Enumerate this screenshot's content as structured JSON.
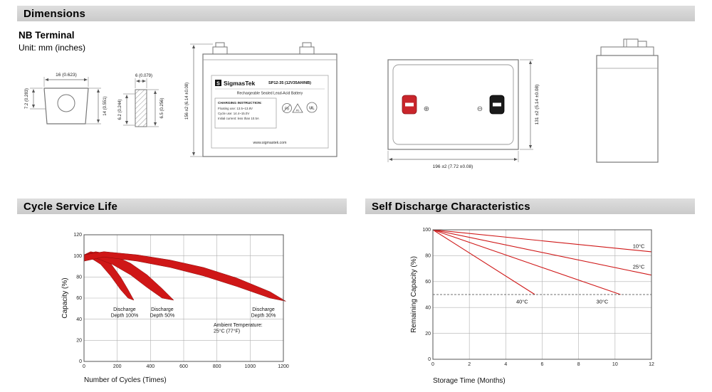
{
  "sections": {
    "dimensions_title": "Dimensions",
    "cycle_title": "Cycle Service Life",
    "self_discharge_title": "Self Discharge Characteristics"
  },
  "terminal_info": {
    "heading": "NB Terminal",
    "unit_note": "Unit: mm (inches)"
  },
  "drawings": {
    "terminal_front": {
      "width": "16 (0.623)",
      "height_partial": "7.2 (0.283)",
      "height_full": "14 (0.551)"
    },
    "terminal_section": {
      "width": "6 (0.079)",
      "depth_inner": "6.2 (0.244)",
      "depth_outer": "6.5 (0.256)"
    },
    "battery_front": {
      "logo_letter": "S",
      "brand": "SigmasTek",
      "model": "SP12-35 (12V35AH/NB)",
      "type_line": "Rechargeable Sealed Lead-Acid Battery",
      "charging_title": "CHARGING INSTRUCTION:",
      "charging_line1": "Floating use: 13.5~13.8V",
      "charging_line2": "Cycle use: 14.4~15.0V",
      "charging_line3": "Initial current: less than 10.5A",
      "pb_icon_label": "Pb",
      "recycle_icon_label": "Pb",
      "ul_icon_label": "UL",
      "website": "www.sigmastek.com",
      "height_dim": "156 ±2 (6.14 ±0.08)"
    },
    "battery_top": {
      "width_dim": "196 ±2 (7.72 ±0.08)",
      "depth_dim": "131 ±2 (5.14 ±0.08)",
      "positive_symbol": "⊕",
      "negative_symbol": "⊖"
    }
  },
  "colors": {
    "accent_red": "#cf1717",
    "terminal_red": "#c9252b",
    "terminal_black": "#1a1a1a",
    "header_gray": "#d4d4d4"
  },
  "chart_data": [
    {
      "id": "cycle-service-life",
      "type": "area",
      "title": "Cycle Service Life",
      "xlabel": "Number of Cycles (Times)",
      "ylabel": "Capacity (%)",
      "xlim": [
        0,
        1200
      ],
      "ylim": [
        0,
        120
      ],
      "xticks": [
        0,
        200,
        400,
        600,
        800,
        1000,
        1200
      ],
      "yticks": [
        0,
        20,
        40,
        60,
        80,
        100,
        120
      ],
      "grid": true,
      "legend_position": "none",
      "color": "#cf1717",
      "margins": {
        "l": 58,
        "r": 82,
        "t": 18,
        "b": 36
      },
      "bands": [
        {
          "name": "Discharge Depth 100%",
          "upper": {
            "x": [
              0,
              40,
              100,
              160,
              220,
              265,
              300
            ],
            "y": [
              101,
              104,
              102,
              93,
              80,
              68,
              58
            ]
          },
          "lower": {
            "x": [
              0,
              40,
              100,
              160,
              220,
              265,
              300
            ],
            "y": [
              95,
              98,
              92,
              81,
              68,
              60,
              58
            ]
          }
        },
        {
          "name": "Discharge Depth 50%",
          "upper": {
            "x": [
              0,
              70,
              170,
              280,
              380,
              470,
              540
            ],
            "y": [
              101,
              104,
              101,
              93,
              82,
              69,
              58
            ]
          },
          "lower": {
            "x": [
              0,
              70,
              170,
              280,
              380,
              470,
              540
            ],
            "y": [
              95,
              98,
              92,
              82,
              70,
              60,
              58
            ]
          }
        },
        {
          "name": "Discharge Depth 30%",
          "upper": {
            "x": [
              0,
              120,
              320,
              520,
              720,
              920,
              1120,
              1215
            ],
            "y": [
              101,
              104,
              101,
              96,
              89,
              79,
              66,
              57
            ]
          },
          "lower": {
            "x": [
              0,
              120,
              320,
              520,
              720,
              920,
              1120,
              1215
            ],
            "y": [
              95,
              99,
              95,
              89,
              81,
              71,
              60,
              57
            ]
          }
        }
      ],
      "annotations": [
        {
          "text": "Discharge\nDepth 100%",
          "x": 244,
          "y": 48
        },
        {
          "text": "Discharge\nDepth 50%",
          "x": 471,
          "y": 48
        },
        {
          "text": "Discharge\nDepth 30%",
          "x": 1080,
          "y": 48
        },
        {
          "text": "Ambient Temperature:\n25°C (77°F)",
          "x": 780,
          "y": 33,
          "anchor": "start"
        }
      ]
    },
    {
      "id": "self-discharge",
      "type": "line",
      "title": "Self Discharge Characteristics",
      "xlabel": "Storage Time (Months)",
      "ylabel": "Remaining Capacity (%)",
      "xlim": [
        0,
        12
      ],
      "ylim": [
        0,
        100
      ],
      "xticks": [
        0,
        2,
        4,
        6,
        8,
        10,
        12
      ],
      "yticks": [
        0,
        20,
        40,
        60,
        80,
        100
      ],
      "grid": true,
      "legend_position": "inline-labels",
      "color": "#cf1717",
      "margins": {
        "l": 68,
        "r": 45,
        "t": 18,
        "b": 40
      },
      "series": [
        {
          "name": "10°C",
          "x": [
            0,
            12
          ],
          "y": [
            100,
            83
          ],
          "label_x": 11.3,
          "label_y": 86
        },
        {
          "name": "25°C",
          "x": [
            0,
            12
          ],
          "y": [
            100,
            65
          ],
          "label_x": 11.3,
          "label_y": 70
        },
        {
          "name": "30°C",
          "x": [
            0,
            10.3
          ],
          "y": [
            100,
            50
          ],
          "label_x": 9.3,
          "label_y": 43
        },
        {
          "name": "40°C",
          "x": [
            0,
            5.6
          ],
          "y": [
            100,
            50
          ],
          "label_x": 4.9,
          "label_y": 43
        }
      ],
      "reference_line": {
        "y": 50,
        "style": "dashed"
      }
    }
  ]
}
